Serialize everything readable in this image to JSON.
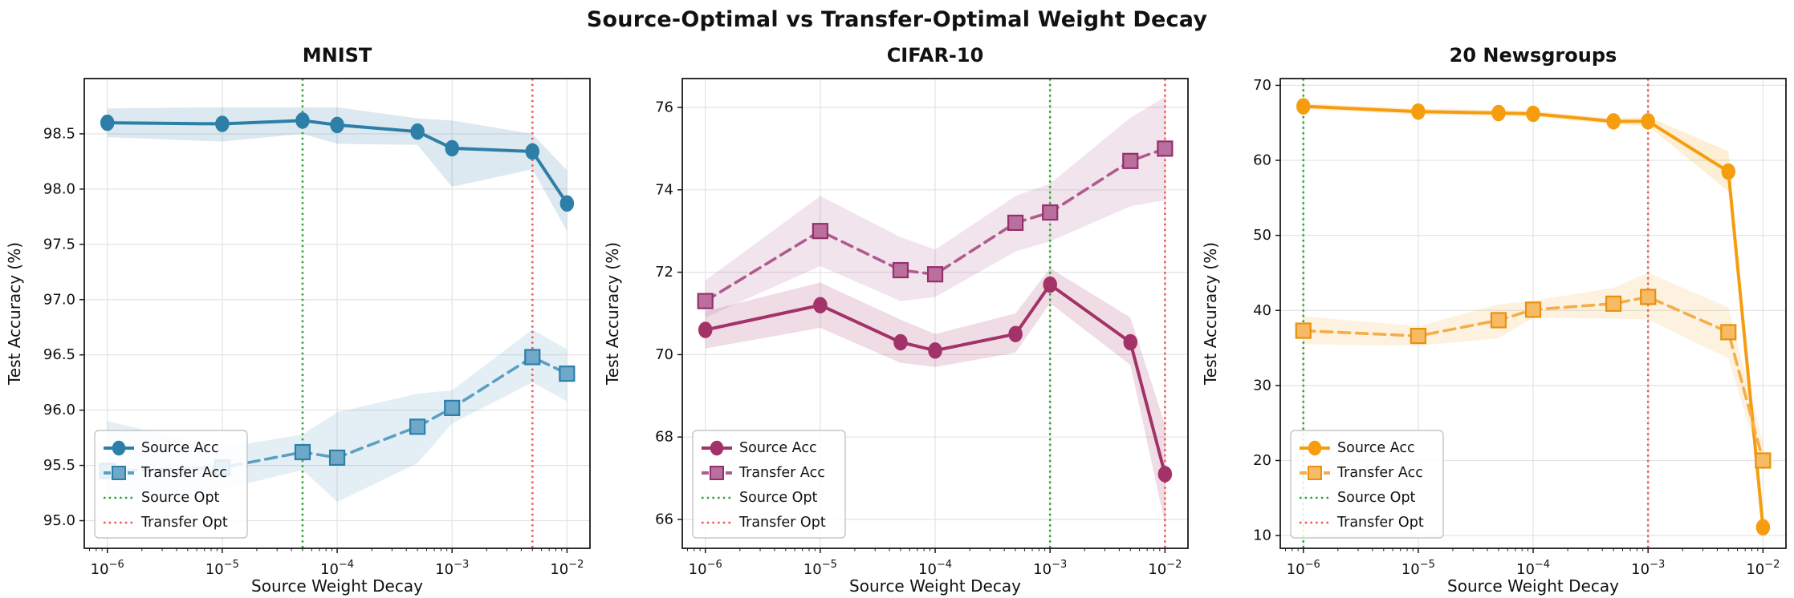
{
  "title": "Source-Optimal vs Transfer-Optimal Weight Decay",
  "chart_data": [
    {
      "type": "line",
      "title": "MNIST",
      "xlabel": "Source Weight Decay",
      "ylabel": "Test Accuracy (%)",
      "xscale": "log",
      "grid": true,
      "legend_position": "lower-left",
      "x": [
        1e-06,
        1e-05,
        5e-05,
        0.0001,
        0.0005,
        0.001,
        0.005,
        0.01
      ],
      "xlim": [
        6.3e-07,
        0.01585
      ],
      "ylim": [
        94.75,
        99.0
      ],
      "yticks": [
        95.0,
        95.5,
        96.0,
        96.5,
        97.0,
        97.5,
        98.0,
        98.5
      ],
      "ytick_decimals": 1,
      "xtick_exponents": [
        -6,
        -5,
        -4,
        -3,
        -2
      ],
      "series": [
        {
          "name": "Source Acc",
          "line": "solid",
          "marker": "circle",
          "color": "#2D7FA8",
          "marker_fill": "#2D7FA8",
          "marker_edge": "#2D7FA8",
          "values": [
            98.6,
            98.59,
            98.62,
            98.58,
            98.52,
            98.37,
            98.34,
            97.87
          ],
          "band_lo": [
            98.47,
            98.43,
            98.5,
            98.41,
            98.4,
            98.02,
            98.18,
            97.62
          ],
          "band_hi": [
            98.73,
            98.74,
            98.74,
            98.74,
            98.64,
            98.62,
            98.5,
            98.17
          ]
        },
        {
          "name": "Transfer Acc",
          "line": "dashed",
          "marker": "square",
          "color": "#5C9FC1",
          "marker_fill": "#6FA8C8",
          "marker_edge": "#2D7FA8",
          "values": [
            95.45,
            95.48,
            95.62,
            95.57,
            95.85,
            96.02,
            96.48,
            96.33
          ],
          "band_lo": [
            95.18,
            95.28,
            95.46,
            95.17,
            95.52,
            95.88,
            96.25,
            96.08
          ],
          "band_hi": [
            95.9,
            95.66,
            95.78,
            95.98,
            96.15,
            96.18,
            96.73,
            96.55
          ]
        }
      ],
      "vlines": [
        {
          "name": "Source Opt",
          "x": 5e-05,
          "color": "#2CA02C"
        },
        {
          "name": "Transfer Opt",
          "x": 0.005,
          "color": "#EF5350"
        }
      ],
      "legend_labels": [
        "Source Acc",
        "Transfer Acc",
        "Source Opt",
        "Transfer Opt"
      ]
    },
    {
      "type": "line",
      "title": "CIFAR-10",
      "xlabel": "Source Weight Decay",
      "ylabel": "Test Accuracy (%)",
      "xscale": "log",
      "grid": true,
      "legend_position": "lower-left",
      "x": [
        1e-06,
        1e-05,
        5e-05,
        0.0001,
        0.0005,
        0.001,
        0.005,
        0.01
      ],
      "xlim": [
        6.3e-07,
        0.01585
      ],
      "ylim": [
        65.3,
        76.7
      ],
      "yticks": [
        66,
        68,
        70,
        72,
        74,
        76
      ],
      "ytick_decimals": 0,
      "xtick_exponents": [
        -6,
        -5,
        -4,
        -3,
        -2
      ],
      "series": [
        {
          "name": "Source Acc",
          "line": "solid",
          "marker": "circle",
          "color": "#A23267",
          "marker_fill": "#A23267",
          "marker_edge": "#A23267",
          "values": [
            70.6,
            71.2,
            70.3,
            70.1,
            70.5,
            71.7,
            70.3,
            67.1
          ],
          "band_lo": [
            70.15,
            70.65,
            69.8,
            69.7,
            70.05,
            71.25,
            69.75,
            65.9
          ],
          "band_hi": [
            71.05,
            71.75,
            70.85,
            70.5,
            71.0,
            72.1,
            70.9,
            68.3
          ]
        },
        {
          "name": "Transfer Acc",
          "line": "dashed",
          "marker": "square",
          "color": "#AE5C8E",
          "marker_fill": "#BB6F9E",
          "marker_edge": "#93316A",
          "values": [
            71.3,
            73.0,
            72.05,
            71.95,
            73.2,
            73.45,
            74.7,
            75.0
          ],
          "band_lo": [
            70.9,
            72.15,
            71.3,
            71.4,
            72.5,
            72.75,
            73.6,
            73.75
          ],
          "band_hi": [
            71.8,
            73.85,
            72.85,
            72.55,
            73.85,
            74.15,
            75.75,
            76.25
          ]
        }
      ],
      "vlines": [
        {
          "name": "Source Opt",
          "x": 0.001,
          "color": "#2CA02C"
        },
        {
          "name": "Transfer Opt",
          "x": 0.01,
          "color": "#EF5350"
        }
      ],
      "legend_labels": [
        "Source Acc",
        "Transfer Acc",
        "Source Opt",
        "Transfer Opt"
      ]
    },
    {
      "type": "line",
      "title": "20 Newsgroups",
      "xlabel": "Source Weight Decay",
      "ylabel": "Test Accuracy (%)",
      "xscale": "log",
      "grid": true,
      "legend_position": "lower-left",
      "x": [
        1e-06,
        1e-05,
        5e-05,
        0.0001,
        0.0005,
        0.001,
        0.005,
        0.01
      ],
      "xlim": [
        6.3e-07,
        0.01585
      ],
      "ylim": [
        8.3,
        70.9
      ],
      "yticks": [
        10,
        20,
        30,
        40,
        50,
        60,
        70
      ],
      "ytick_decimals": 0,
      "xtick_exponents": [
        -6,
        -5,
        -4,
        -3,
        -2
      ],
      "series": [
        {
          "name": "Source Acc",
          "line": "solid",
          "marker": "circle",
          "color": "#F59D0E",
          "marker_fill": "#F59D0E",
          "marker_edge": "#F59D0E",
          "values": [
            67.2,
            66.5,
            66.3,
            66.2,
            65.2,
            65.2,
            58.5,
            11.1
          ],
          "band_lo": [
            66.8,
            66.1,
            65.9,
            65.8,
            64.8,
            64.6,
            55.9,
            10.6
          ],
          "band_hi": [
            67.6,
            66.9,
            66.7,
            66.6,
            65.6,
            65.8,
            61.2,
            11.7
          ]
        },
        {
          "name": "Transfer Acc",
          "line": "dashed",
          "marker": "square",
          "color": "#F5AD49",
          "marker_fill": "#F7BA65",
          "marker_edge": "#E8920E",
          "values": [
            37.3,
            36.6,
            38.7,
            40.1,
            40.9,
            41.8,
            37.1,
            20.0
          ],
          "band_lo": [
            35.5,
            35.3,
            36.3,
            39.0,
            38.9,
            38.8,
            33.6,
            18.4
          ],
          "band_hi": [
            39.2,
            37.9,
            40.8,
            41.3,
            43.0,
            45.0,
            40.4,
            22.4
          ]
        }
      ],
      "vlines": [
        {
          "name": "Source Opt",
          "x": 1e-06,
          "color": "#2CA02C"
        },
        {
          "name": "Transfer Opt",
          "x": 0.001,
          "color": "#EF5350"
        }
      ],
      "legend_labels": [
        "Source Acc",
        "Transfer Acc",
        "Source Opt",
        "Transfer Opt"
      ]
    }
  ]
}
